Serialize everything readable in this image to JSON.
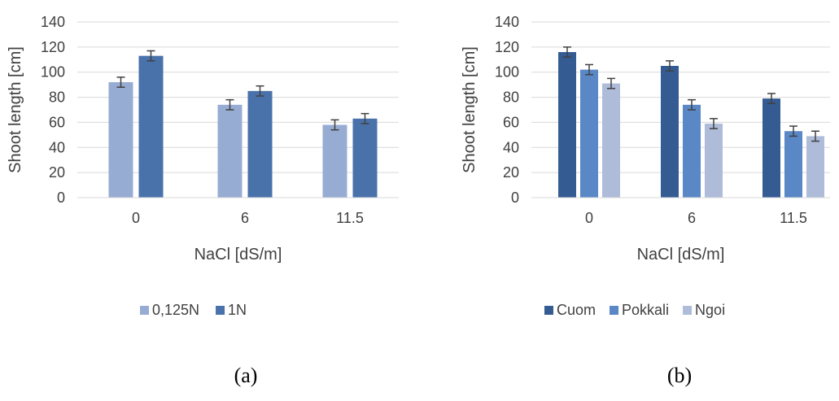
{
  "chart_data": [
    {
      "panel": "(a)",
      "type": "bar",
      "title": "",
      "xlabel": "NaCl [dS/m]",
      "ylabel": "Shoot length [cm]",
      "categories": [
        "0",
        "6",
        "11.5"
      ],
      "ylim": [
        0,
        140
      ],
      "yticks": [
        0,
        20,
        40,
        60,
        80,
        100,
        120,
        140
      ],
      "grid": true,
      "legend_position": "bottom",
      "error_bars": true,
      "series": [
        {
          "name": "0,125N",
          "color": "#97acd3",
          "values": [
            92,
            74,
            58
          ],
          "errors": [
            4,
            4,
            4
          ]
        },
        {
          "name": "1N",
          "color": "#4a72aa",
          "values": [
            113,
            85,
            63
          ],
          "errors": [
            4,
            4,
            4
          ]
        }
      ]
    },
    {
      "panel": "(b)",
      "type": "bar",
      "title": "",
      "xlabel": "NaCl [dS/m]",
      "ylabel": "Shoot length [cm]",
      "categories": [
        "0",
        "6",
        "11.5"
      ],
      "ylim": [
        0,
        140
      ],
      "yticks": [
        0,
        20,
        40,
        60,
        80,
        100,
        120,
        140
      ],
      "grid": true,
      "legend_position": "bottom",
      "error_bars": true,
      "series": [
        {
          "name": "Cuom",
          "color": "#345c93",
          "values": [
            116,
            105,
            79
          ],
          "errors": [
            4,
            4,
            4
          ]
        },
        {
          "name": "Pokkali",
          "color": "#5a87c6",
          "values": [
            102,
            74,
            53
          ],
          "errors": [
            4,
            4,
            4
          ]
        },
        {
          "name": "Ngoi",
          "color": "#aebcd9",
          "values": [
            91,
            59,
            49
          ],
          "errors": [
            4,
            4,
            4
          ]
        }
      ]
    }
  ]
}
